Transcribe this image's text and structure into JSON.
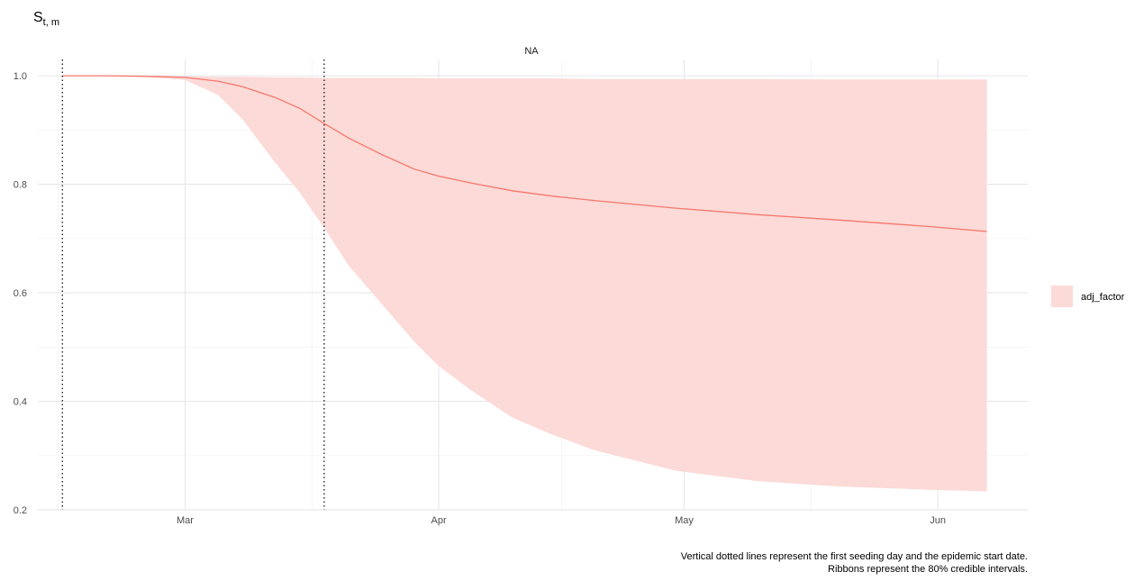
{
  "chart_data": {
    "type": "area",
    "facet_label": "NA",
    "ylabel_main": "S",
    "ylabel_sub": "t, m",
    "ylim": [
      0.2,
      1.03
    ],
    "y_ticks": [
      0.2,
      0.4,
      0.6,
      0.8,
      1.0
    ],
    "y_tick_labels": [
      "0.2",
      "0.4",
      "0.6",
      "0.8",
      "1.0"
    ],
    "x_ticks": [
      "2020-03-01",
      "2020-04-01",
      "2020-05-01",
      "2020-06-01"
    ],
    "x_tick_labels": [
      "Mar",
      "Apr",
      "May",
      "Jun"
    ],
    "xlim": [
      "2020-02-12",
      "2020-06-12"
    ],
    "vlines": [
      "2020-02-15",
      "2020-03-18"
    ],
    "grid": true,
    "legend": {
      "position": "right",
      "entries": [
        {
          "label": "adj_factor",
          "color": "#fcdad7"
        }
      ]
    },
    "colors": {
      "line": "#f8766d",
      "ribbon": "#fcdad7"
    },
    "series": [
      {
        "name": "adj_factor",
        "x": [
          "2020-02-15",
          "2020-02-20",
          "2020-02-25",
          "2020-03-01",
          "2020-03-05",
          "2020-03-08",
          "2020-03-12",
          "2020-03-15",
          "2020-03-18",
          "2020-03-21",
          "2020-03-25",
          "2020-03-29",
          "2020-04-01",
          "2020-04-05",
          "2020-04-10",
          "2020-04-15",
          "2020-04-20",
          "2020-04-30",
          "2020-05-10",
          "2020-05-20",
          "2020-05-31",
          "2020-06-07"
        ],
        "y": [
          1.0,
          1.0,
          0.999,
          0.997,
          0.99,
          0.98,
          0.96,
          0.94,
          0.912,
          0.885,
          0.855,
          0.828,
          0.815,
          0.802,
          0.788,
          0.778,
          0.77,
          0.756,
          0.744,
          0.734,
          0.722,
          0.713
        ],
        "lower": [
          1.0,
          1.0,
          0.998,
          0.992,
          0.965,
          0.92,
          0.84,
          0.785,
          0.72,
          0.65,
          0.58,
          0.51,
          0.465,
          0.42,
          0.37,
          0.338,
          0.31,
          0.272,
          0.253,
          0.243,
          0.237,
          0.234
        ],
        "upper": [
          1.0,
          1.0,
          1.0,
          0.999,
          0.998,
          0.998,
          0.997,
          0.997,
          0.996,
          0.996,
          0.996,
          0.996,
          0.995,
          0.995,
          0.995,
          0.995,
          0.994,
          0.994,
          0.994,
          0.993,
          0.993,
          0.993
        ]
      }
    ]
  },
  "caption": {
    "line1": "Vertical dotted lines represent the first seeding day and the epidemic start date.",
    "line2": "Ribbons represent the 80% credible intervals."
  }
}
